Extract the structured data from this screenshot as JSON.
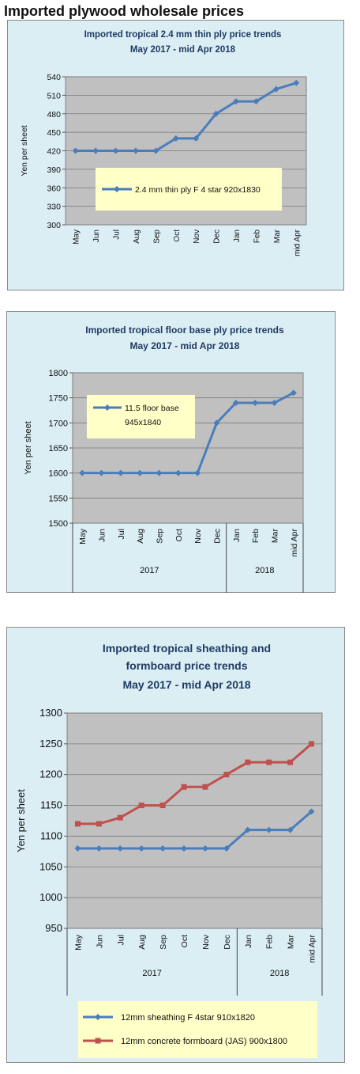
{
  "page": {
    "title": "Imported plywood wholesale prices"
  },
  "chart_data": [
    {
      "type": "line",
      "title": "Imported tropical 2.4 mm thin ply price trends",
      "subtitle": "May 2017 - mid Apr 2018",
      "ylabel": "Yen per sheet",
      "ylim": [
        300,
        540
      ],
      "yticks": [
        300,
        330,
        360,
        390,
        420,
        450,
        480,
        510,
        540
      ],
      "categories": [
        "May",
        "Jun",
        "Jul",
        "Aug",
        "Sep",
        "Oct",
        "Nov",
        "Dec",
        "Jan",
        "Feb",
        "Mar",
        "mid Apr"
      ],
      "year_groups": [],
      "series": [
        {
          "name": "2.4 mm thin ply F 4 star 920x1830",
          "color": "#4a7ebb",
          "marker": "diamond",
          "values": [
            420,
            420,
            420,
            420,
            420,
            440,
            440,
            480,
            500,
            500,
            520,
            530
          ]
        }
      ],
      "legend": "inside-lower-left",
      "grid": true
    },
    {
      "type": "line",
      "title": "Imported tropical floor base ply price trends",
      "subtitle": "May 2017 - mid Apr 2018",
      "ylabel": "Yen per sheet",
      "ylim": [
        1500,
        1800
      ],
      "yticks": [
        1500,
        1550,
        1600,
        1650,
        1700,
        1750,
        1800
      ],
      "categories": [
        "May",
        "Jun",
        "Jul",
        "Aug",
        "Sep",
        "Oct",
        "Nov",
        "Dec",
        "Jan",
        "Feb",
        "Mar",
        "mid Apr"
      ],
      "year_groups": [
        {
          "label": "2017",
          "count": 8
        },
        {
          "label": "2018",
          "count": 4
        }
      ],
      "series": [
        {
          "name": "11.5 floor base 945x1840",
          "color": "#4a7ebb",
          "marker": "diamond",
          "values": [
            1600,
            1600,
            1600,
            1600,
            1600,
            1600,
            1600,
            1700,
            1740,
            1740,
            1740,
            1760
          ]
        }
      ],
      "legend": "inside-top-left",
      "grid": true
    },
    {
      "type": "line",
      "title": "Imported tropical sheathing and formboard price trends",
      "subtitle": "May 2017 - mid Apr 2018",
      "ylabel": "Yen per sheet",
      "ylim": [
        950,
        1300
      ],
      "yticks": [
        950,
        1000,
        1050,
        1100,
        1150,
        1200,
        1250,
        1300
      ],
      "categories": [
        "May",
        "Jun",
        "Jul",
        "Aug",
        "Sep",
        "Oct",
        "Nov",
        "Dec",
        "Jan",
        "Feb",
        "Mar",
        "mid Apr"
      ],
      "year_groups": [
        {
          "label": "2017",
          "count": 8
        },
        {
          "label": "2018",
          "count": 4
        }
      ],
      "series": [
        {
          "name": "12mm sheathing F 4star 910x1820",
          "color": "#4a7ebb",
          "marker": "diamond",
          "values": [
            1080,
            1080,
            1080,
            1080,
            1080,
            1080,
            1080,
            1080,
            1110,
            1110,
            1110,
            1140
          ]
        },
        {
          "name": "12mm concrete formboard (JAS) 900x1800",
          "color": "#c0504d",
          "marker": "square",
          "values": [
            1120,
            1120,
            1130,
            1150,
            1150,
            1180,
            1180,
            1200,
            1220,
            1220,
            1220,
            1250
          ]
        }
      ],
      "legend": "bottom",
      "grid": true
    }
  ]
}
